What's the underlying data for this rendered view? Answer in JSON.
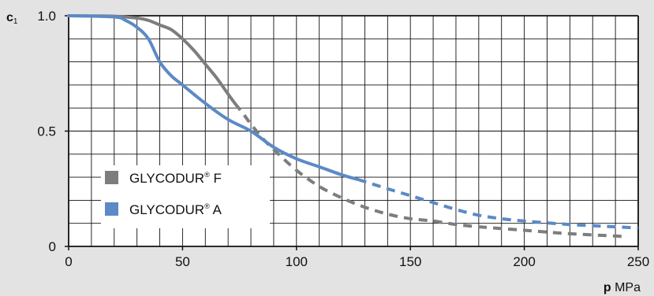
{
  "colors": {
    "background": "#e3e3e3",
    "plot_background": "#ffffff",
    "grid": "#111111",
    "series_f": "#7d7d7d",
    "series_a": "#5b8ac6"
  },
  "chart_data": {
    "type": "line",
    "ylabel": "c",
    "ylabel_sub": "1",
    "xlabel_bold": "p",
    "xlabel_unit": "MPa",
    "xlim": [
      0,
      250
    ],
    "ylim": [
      0,
      1.0
    ],
    "x_ticks": [
      0,
      50,
      100,
      150,
      200,
      250
    ],
    "x_tick_labels": [
      "0",
      "50",
      "100",
      "150",
      "200",
      "250"
    ],
    "y_ticks": [
      0,
      0.5,
      1.0
    ],
    "y_tick_labels": [
      "0",
      "0.5",
      "1.0"
    ],
    "x_grid_step": 10,
    "y_grid_step": 0.1,
    "grid": true,
    "legend_position": "lower-left",
    "series": [
      {
        "name": "GLYCODUR® F",
        "name_text": "GLYCODUR",
        "name_sup": "®",
        "name_suffix": "F",
        "color": "#7d7d7d",
        "solid_until_x": 73,
        "points": [
          [
            0,
            1.0
          ],
          [
            20,
            0.998
          ],
          [
            30,
            0.99
          ],
          [
            35,
            0.98
          ],
          [
            40,
            0.96
          ],
          [
            45,
            0.94
          ],
          [
            50,
            0.9
          ],
          [
            55,
            0.85
          ],
          [
            60,
            0.79
          ],
          [
            65,
            0.73
          ],
          [
            70,
            0.66
          ],
          [
            73,
            0.62
          ],
          [
            77,
            0.57
          ],
          [
            80,
            0.53
          ],
          [
            85,
            0.47
          ],
          [
            90,
            0.42
          ],
          [
            100,
            0.33
          ],
          [
            110,
            0.26
          ],
          [
            120,
            0.21
          ],
          [
            130,
            0.17
          ],
          [
            140,
            0.14
          ],
          [
            150,
            0.12
          ],
          [
            160,
            0.11
          ],
          [
            170,
            0.095
          ],
          [
            180,
            0.085
          ],
          [
            200,
            0.07
          ],
          [
            220,
            0.055
          ],
          [
            240,
            0.045
          ],
          [
            245,
            0.04
          ]
        ]
      },
      {
        "name": "GLYCODUR® A",
        "name_text": "GLYCODUR",
        "name_sup": "®",
        "name_suffix": "A",
        "color": "#5b8ac6",
        "solid_until_x": 127,
        "points": [
          [
            0,
            1.0
          ],
          [
            20,
            0.995
          ],
          [
            25,
            0.98
          ],
          [
            30,
            0.95
          ],
          [
            35,
            0.9
          ],
          [
            40,
            0.8
          ],
          [
            45,
            0.74
          ],
          [
            50,
            0.7
          ],
          [
            60,
            0.62
          ],
          [
            70,
            0.55
          ],
          [
            80,
            0.5
          ],
          [
            90,
            0.43
          ],
          [
            100,
            0.38
          ],
          [
            110,
            0.345
          ],
          [
            120,
            0.31
          ],
          [
            127,
            0.29
          ],
          [
            140,
            0.25
          ],
          [
            150,
            0.22
          ],
          [
            160,
            0.19
          ],
          [
            170,
            0.16
          ],
          [
            180,
            0.135
          ],
          [
            190,
            0.12
          ],
          [
            200,
            0.11
          ],
          [
            220,
            0.095
          ],
          [
            250,
            0.08
          ]
        ]
      }
    ]
  }
}
